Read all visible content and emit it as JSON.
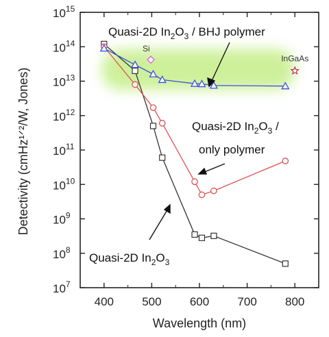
{
  "chart_data": {
    "type": "scatter",
    "xlabel": "Wavelength (nm)",
    "ylabel": "Detectivity (cmHz¹ᐟ²/W, Jones)",
    "xlim": [
      350,
      850
    ],
    "ylim_log10": [
      7,
      15
    ],
    "y_scale": "log",
    "x_ticks": [
      400,
      500,
      600,
      700,
      800
    ],
    "x_tick_labels": [
      "400",
      "500",
      "600",
      "700",
      "800"
    ],
    "y_ticks_log10": [
      7,
      8,
      9,
      10,
      11,
      12,
      13,
      14,
      15
    ],
    "y_tick_labels": [
      {
        "base": "10",
        "exp": "7"
      },
      {
        "base": "10",
        "exp": "8"
      },
      {
        "base": "10",
        "exp": "9"
      },
      {
        "base": "10",
        "exp": "10"
      },
      {
        "base": "10",
        "exp": "11"
      },
      {
        "base": "10",
        "exp": "12"
      },
      {
        "base": "10",
        "exp": "13"
      },
      {
        "base": "10",
        "exp": "14"
      },
      {
        "base": "10",
        "exp": "15"
      }
    ],
    "series": [
      {
        "color": "#333333",
        "marker": "square",
        "x": [
          400,
          465,
          503,
          522,
          590,
          605,
          630,
          780
        ],
        "y": [
          120000000000000.0,
          20000000000000.0,
          500000000000.0,
          60000000000.0,
          350000000.0,
          280000000.0,
          320000000.0,
          50000000.0
        ]
      },
      {
        "color": "#e05050",
        "marker": "circle",
        "x": [
          400,
          465,
          503,
          522,
          590,
          605,
          630,
          780
        ],
        "y": [
          100000000000000.0,
          8000000000000.0,
          1700000000000.0,
          600000000000.0,
          12000000000.0,
          5000000000.0,
          6500000000.0,
          48000000000.0
        ]
      },
      {
        "color": "#3a4fd8",
        "marker": "triangle",
        "x": [
          400,
          465,
          503,
          522,
          590,
          605,
          630,
          780
        ],
        "y": [
          90000000000000.0,
          30000000000000.0,
          16000000000000.0,
          11000000000000.0,
          8500000000000.0,
          8300000000000.0,
          7500000000000.0,
          7200000000000.0
        ]
      }
    ],
    "reference_points": [
      {
        "label": "Si",
        "x": 498,
        "y": 42000000000000.0,
        "marker": "diamond",
        "color": "#e070e0"
      },
      {
        "label": "InGaAs",
        "x": 800,
        "y": 20000000000000.0,
        "marker": "star",
        "color": "#c03050"
      }
    ],
    "annotations": [
      {
        "segments": [
          {
            "t": "Quasi-2D In"
          },
          {
            "t": "2",
            "sub": true
          },
          {
            "t": "O"
          },
          {
            "t": "3",
            "sub": true
          },
          {
            "t": " / BHJ polymer"
          }
        ]
      },
      {
        "segments": [
          {
            "t": "Quasi-2D In"
          },
          {
            "t": "2",
            "sub": true
          },
          {
            "t": "O"
          },
          {
            "t": "3",
            "sub": true
          },
          {
            "t": " /"
          }
        ]
      },
      {
        "segments": [
          {
            "t": "only polymer"
          }
        ]
      },
      {
        "segments": [
          {
            "t": "Quasi-2D In"
          },
          {
            "t": "2",
            "sub": true
          },
          {
            "t": "O"
          },
          {
            "t": "3",
            "sub": true
          }
        ]
      }
    ],
    "highlight_band_color": "#c6ee8a"
  }
}
